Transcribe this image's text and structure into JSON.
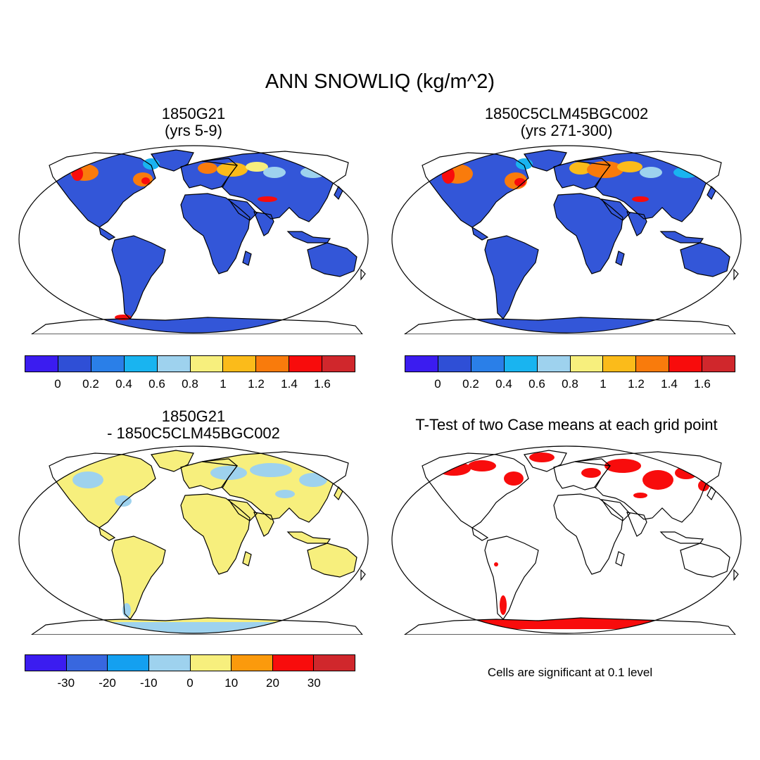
{
  "title": "ANN SNOWLIQ (kg/m^2)",
  "panels": [
    {
      "title": "1850G21",
      "subtitle": "(yrs 5-9)"
    },
    {
      "title": "1850C5CLM45BGC002",
      "subtitle": "(yrs 271-300)"
    },
    {
      "title": "1850G21",
      "subtitle": "- 1850C5CLM45BGC002"
    },
    {
      "title": "T-Test of two Case means at each grid point"
    }
  ],
  "colorbar_abs": {
    "colors": [
      "#3b1cf0",
      "#2f4fd6",
      "#2a7fe8",
      "#19b4f0",
      "#9ed2ee",
      "#f7ef7d",
      "#fbbb1a",
      "#f97b0c",
      "#f80c0c",
      "#d0272c"
    ],
    "labels": [
      "0",
      "0.2",
      "0.4",
      "0.6",
      "0.8",
      "1",
      "1.2",
      "1.4",
      "1.6"
    ]
  },
  "colorbar_diff": {
    "colors": [
      "#3b1cf0",
      "#3867df",
      "#14a0f0",
      "#9ed2ee",
      "#f7ef7d",
      "#fb9a0c",
      "#f80c0c",
      "#d0272c"
    ],
    "labels": [
      "-30",
      "-20",
      "-10",
      "0",
      "10",
      "20",
      "30"
    ]
  },
  "note": "Cells are significant at 0.1 level"
}
